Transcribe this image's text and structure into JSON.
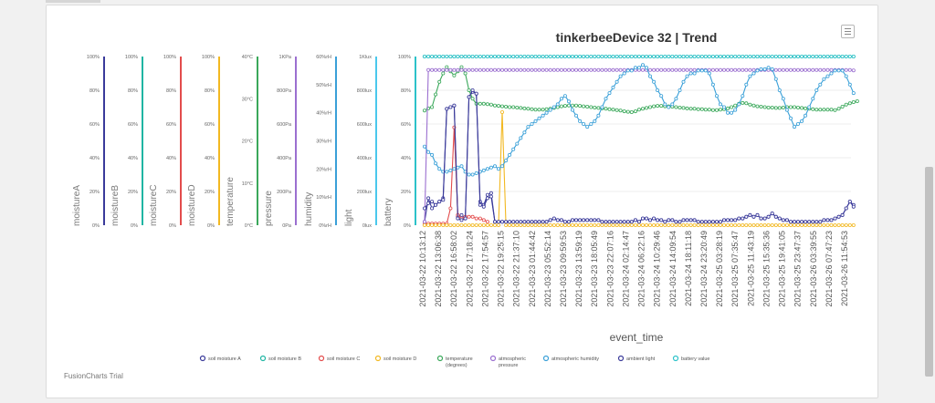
{
  "window": {
    "scrollbar": true
  },
  "chart_data": {
    "type": "line",
    "title": "tinkerbeeDevice 32 | Trend",
    "xlabel": "event_time",
    "watermark": "FusionCharts Trial",
    "x_ticks": [
      "2021-03-22 10:13:12",
      "2021-03-22 13:06:38",
      "2021-03-22 16:58:02",
      "2021-03-22 17:18:24",
      "2021-03-22 17:54:57",
      "2021-03-22 19:25:15",
      "2021-03-22 21:37:10",
      "2021-03-23 01:44:42",
      "2021-03-23 05:52:14",
      "2021-03-23 09:59:53",
      "2021-03-23 13:59:19",
      "2021-03-23 18:05:49",
      "2021-03-23 22:07:16",
      "2021-03-24 02:14:47",
      "2021-03-24 06:22:16",
      "2021-03-24 10:29:46",
      "2021-03-24 14:09:54",
      "2021-03-24 18:11:18",
      "2021-03-24 23:20:49",
      "2021-03-25 03:28:19",
      "2021-03-25 07:35:47",
      "2021-03-25 11:43:19",
      "2021-03-25 15:35:36",
      "2021-03-25 19:41:05",
      "2021-03-25 23:47:37",
      "2021-03-26 03:39:55",
      "2021-03-26 07:47:23",
      "2021-03-26 11:54:53"
    ],
    "axes": [
      {
        "name": "moistureA",
        "color": "#3a3a9a",
        "ticks": [
          "0%",
          "20%",
          "40%",
          "60%",
          "80%",
          "100%"
        ],
        "min": 0,
        "max": 100
      },
      {
        "name": "moistureB",
        "color": "#1fb5a3",
        "ticks": [
          "0%",
          "20%",
          "40%",
          "60%",
          "80%",
          "100%"
        ],
        "min": 0,
        "max": 100
      },
      {
        "name": "moistureC",
        "color": "#e34c4c",
        "ticks": [
          "0%",
          "20%",
          "40%",
          "60%",
          "80%",
          "100%"
        ],
        "min": 0,
        "max": 100
      },
      {
        "name": "moistureD",
        "color": "#f2b821",
        "ticks": [
          "0%",
          "20%",
          "40%",
          "60%",
          "80%",
          "100%"
        ],
        "min": 0,
        "max": 100
      },
      {
        "name": "temperature",
        "color": "#3aa85a",
        "ticks": [
          "0°C",
          "10°C",
          "20°C",
          "30°C",
          "40°C"
        ],
        "min": 0,
        "max": 40
      },
      {
        "name": "pressure",
        "color": "#9b6fd0",
        "ticks": [
          "0Pa",
          "200Pa",
          "400Pa",
          "600Pa",
          "800Pa",
          "1KPa"
        ],
        "min": 0,
        "max": 1000
      },
      {
        "name": "humidity",
        "color": "#3aa0d8",
        "ticks": [
          "0%rH",
          "10%rH",
          "20%rH",
          "30%rH",
          "40%rH",
          "50%rH",
          "60%rH"
        ],
        "min": 0,
        "max": 60
      },
      {
        "name": "light",
        "color": "#4ac8ec",
        "ticks": [
          "0lux",
          "200lux",
          "400lux",
          "600lux",
          "800lux",
          "1Klux"
        ],
        "min": 0,
        "max": 1000
      },
      {
        "name": "battery",
        "color": "#2cc2c9",
        "ticks": [
          "0%",
          "20%",
          "40%",
          "60%",
          "80%",
          "100%"
        ],
        "min": 0,
        "max": 100
      }
    ],
    "series": [
      {
        "name": "soil moisture A",
        "color": "#3a3a9a",
        "values": [
          2,
          16,
          10,
          12,
          14,
          16,
          69,
          70,
          71,
          5,
          6,
          4,
          76,
          79,
          78,
          14,
          12,
          18,
          19,
          2,
          2,
          2,
          2,
          2,
          2,
          2,
          2,
          2,
          2,
          2,
          2,
          2,
          2,
          2,
          3,
          4,
          3,
          3,
          2,
          2,
          3,
          3,
          3,
          3,
          3,
          3,
          3,
          3,
          2,
          2,
          2,
          2,
          2,
          2,
          2,
          2,
          2,
          3,
          2,
          4,
          4,
          3,
          4,
          3,
          3,
          2,
          3,
          3,
          2,
          2,
          3,
          3,
          3,
          3,
          2,
          2,
          2,
          2,
          2,
          2,
          2,
          3,
          3,
          3,
          3,
          4,
          4,
          5,
          6,
          5,
          6,
          4,
          4,
          5,
          7,
          5,
          4,
          3,
          3,
          2,
          2,
          2,
          2,
          2,
          2,
          2,
          2,
          2,
          3,
          3,
          3,
          4,
          5,
          6,
          10,
          14,
          12
        ]
      },
      {
        "name": "soil moisture B",
        "color": "#1fb5a3",
        "values": [
          100,
          100,
          100,
          100,
          100,
          100,
          100,
          100,
          100,
          100,
          100,
          100,
          100,
          100,
          100,
          100,
          100,
          100,
          100,
          100,
          100,
          100,
          100,
          100,
          100,
          100,
          100,
          100,
          100,
          100,
          100,
          100,
          100,
          100,
          100,
          100,
          100,
          100,
          100,
          100,
          100,
          100,
          100,
          100,
          100,
          100,
          100,
          100,
          100,
          100,
          100,
          100,
          100,
          100,
          100,
          100,
          100,
          100,
          100,
          100,
          100,
          100,
          100,
          100,
          100,
          100,
          100,
          100,
          100,
          100,
          100,
          100,
          100,
          100,
          100,
          100,
          100,
          100,
          100,
          100,
          100,
          100,
          100,
          100,
          100,
          100,
          100,
          100,
          100,
          100,
          100,
          100,
          100,
          100,
          100,
          100,
          100,
          100,
          100,
          100,
          100,
          100,
          100,
          100,
          100,
          100,
          100,
          100,
          100,
          100,
          100,
          100,
          100,
          100,
          100,
          100,
          100
        ]
      },
      {
        "name": "soil moisture C",
        "color": "#e34c4c",
        "values": [
          1,
          1,
          1,
          1,
          1,
          1,
          1,
          10,
          58,
          6,
          4,
          5,
          5,
          5,
          4,
          4,
          3,
          2
        ]
      },
      {
        "name": "soil moisture D",
        "color": "#f2b821",
        "values": [
          0,
          0,
          0,
          0,
          0,
          0,
          0,
          0,
          0,
          0,
          0,
          0,
          0,
          0,
          0,
          0,
          0,
          0,
          0,
          0,
          0,
          67,
          0,
          0,
          0,
          0,
          0,
          0,
          0,
          0,
          0,
          0,
          0,
          0,
          0,
          0,
          0,
          0,
          0,
          0,
          0,
          0,
          0,
          0,
          0,
          0,
          0,
          0,
          0,
          0,
          0,
          0,
          0,
          0,
          0,
          0,
          0,
          0,
          0,
          0,
          0,
          0,
          0,
          0,
          0,
          0,
          0,
          0,
          0,
          0,
          0,
          0,
          0,
          0,
          0,
          0,
          0,
          0,
          0,
          0,
          0,
          0,
          0,
          0,
          0,
          0,
          0,
          0,
          0,
          0,
          0,
          0,
          0,
          0,
          0,
          0,
          0,
          0,
          0,
          0,
          0,
          0,
          0,
          0,
          0,
          0,
          0,
          0,
          0,
          0,
          0,
          0,
          0,
          0,
          0,
          0,
          0
        ]
      },
      {
        "name": "temperature (degrees)",
        "color": "#3aa85a",
        "values": [
          27.2,
          27.7,
          28,
          31,
          34,
          36,
          37.5,
          36.5,
          35.5,
          36.5,
          37.5,
          36,
          32,
          30,
          28.8,
          28.8,
          28.8,
          28.7,
          28.6,
          28.4,
          28.3,
          28.2,
          28.1,
          28,
          28,
          27.9,
          27.8,
          27.7,
          27.6,
          27.5,
          27.4,
          27.4,
          27.4,
          27.5,
          27.6,
          27.8,
          28,
          28.2,
          28.3,
          28.4,
          28.4,
          28.4,
          28.3,
          28.2,
          28.1,
          28,
          27.9,
          27.8,
          27.7,
          27.6,
          27.5,
          27.4,
          27.3,
          27.2,
          27,
          26.9,
          26.8,
          27,
          27.4,
          27.6,
          27.8,
          28,
          28.2,
          28.3,
          28.3,
          28.2,
          28.2,
          28.1,
          28,
          27.9,
          27.8,
          27.7,
          27.6,
          27.6,
          27.5,
          27.5,
          27.4,
          27.4,
          27.3,
          27.3,
          27.4,
          27.5,
          27.7,
          28,
          28.4,
          28.8,
          29,
          28.9,
          28.6,
          28.4,
          28.2,
          28.1,
          28,
          27.9,
          27.9,
          27.8,
          27.8,
          27.9,
          28,
          28,
          28,
          27.9,
          27.8,
          27.7,
          27.6,
          27.5,
          27.4,
          27.4,
          27.4,
          27.4,
          27.4,
          27.3,
          27.6,
          28.1,
          28.6,
          28.9,
          29.2,
          29.4
        ]
      },
      {
        "name": "atmospheric pressure",
        "color": "#9b6fd0",
        "values": [
          20,
          920,
          920,
          920,
          920,
          920,
          920,
          920,
          920,
          920,
          920,
          920,
          920,
          920,
          920,
          920,
          920,
          920,
          920,
          920,
          920,
          920,
          920,
          920,
          920,
          920,
          920,
          920,
          920,
          920,
          920,
          920,
          920,
          920,
          920,
          920,
          920,
          920,
          920,
          920,
          920,
          920,
          920,
          920,
          920,
          920,
          920,
          920,
          920,
          920,
          920,
          920,
          920,
          920,
          920,
          920,
          920,
          920,
          920,
          920,
          920,
          920,
          920,
          920,
          920,
          920,
          920,
          920,
          920,
          920,
          920,
          920,
          920,
          920,
          920,
          920,
          920,
          920,
          920,
          920,
          920,
          920,
          920,
          920,
          920,
          920,
          920,
          920,
          920,
          920,
          920,
          920,
          920,
          920,
          920,
          920,
          920,
          920,
          920,
          920,
          920,
          920,
          920,
          920,
          920,
          920,
          920,
          920,
          920,
          920,
          920,
          920,
          920,
          920,
          920,
          920,
          918
        ]
      },
      {
        "name": "atmospheric humidity",
        "color": "#3aa0d8",
        "values": [
          28,
          26,
          25,
          22,
          20,
          19,
          19,
          19.5,
          20,
          20.5,
          21,
          19,
          18,
          18,
          18.5,
          19,
          19.5,
          20,
          20.5,
          21,
          20,
          21,
          23,
          25,
          27,
          29,
          31,
          33,
          35,
          36,
          37,
          38,
          39,
          40,
          41,
          42,
          43,
          45,
          46,
          44,
          41,
          39,
          37,
          36,
          35,
          36,
          37,
          39,
          42,
          45,
          47,
          49,
          51,
          53,
          54,
          55,
          55,
          56,
          56,
          57,
          56,
          53,
          51,
          48,
          46,
          43,
          42,
          43,
          45,
          48,
          51,
          53,
          54,
          54,
          55,
          55,
          55,
          54,
          50,
          46,
          43,
          42,
          40,
          40,
          41,
          43,
          46,
          50,
          53,
          54,
          55,
          55.5,
          55.5,
          56,
          55.5,
          52,
          48,
          45,
          41,
          38,
          35,
          36,
          37,
          39,
          42,
          45,
          48,
          50,
          52,
          53,
          54,
          55,
          55,
          55,
          53,
          50,
          47
        ]
      },
      {
        "name": "ambient light",
        "color": "#3a3a9a",
        "values": [
          100,
          130,
          140,
          120,
          140,
          150,
          690,
          700,
          710,
          40,
          30,
          40,
          760,
          800,
          780,
          120,
          110,
          160,
          170,
          20,
          20,
          20,
          20,
          20,
          20,
          20,
          20,
          20,
          20,
          20,
          20,
          20,
          20,
          20,
          30,
          40,
          30,
          30,
          20,
          20,
          30,
          30,
          30,
          30,
          30,
          30,
          30,
          30,
          20,
          20,
          20,
          20,
          20,
          20,
          20,
          20,
          20,
          30,
          20,
          40,
          40,
          30,
          40,
          30,
          30,
          20,
          30,
          30,
          20,
          20,
          30,
          30,
          30,
          30,
          20,
          20,
          20,
          20,
          20,
          20,
          20,
          30,
          30,
          30,
          30,
          40,
          40,
          50,
          60,
          50,
          60,
          40,
          40,
          50,
          70,
          50,
          40,
          30,
          30,
          20,
          20,
          20,
          20,
          20,
          20,
          20,
          20,
          20,
          30,
          30,
          30,
          40,
          50,
          60,
          100,
          140,
          110
        ]
      },
      {
        "name": "battery value",
        "color": "#2cc2c9",
        "values": [
          100,
          100,
          100,
          100,
          100,
          100,
          100,
          100,
          100,
          100,
          100,
          100,
          100,
          100,
          100,
          100,
          100,
          100,
          100,
          100,
          100,
          100,
          100,
          100,
          100,
          100,
          100,
          100,
          100,
          100,
          100,
          100,
          100,
          100,
          100,
          100,
          100,
          100,
          100,
          100,
          100,
          100,
          100,
          100,
          100,
          100,
          100,
          100,
          100,
          100,
          100,
          100,
          100,
          100,
          100,
          100,
          100,
          100,
          100,
          100,
          100,
          100,
          100,
          100,
          100,
          100,
          100,
          100,
          100,
          100,
          100,
          100,
          100,
          100,
          100,
          100,
          100,
          100,
          100,
          100,
          100,
          100,
          100,
          100,
          100,
          100,
          100,
          100,
          100,
          100,
          100,
          100,
          100,
          100,
          100,
          100,
          100,
          100,
          100,
          100,
          100,
          100,
          100,
          100,
          100,
          100,
          100,
          100,
          100,
          100,
          100,
          100,
          100,
          100,
          100,
          100,
          100
        ]
      }
    ],
    "legend": [
      {
        "label": [
          "soil moisture A"
        ],
        "color": "#3a3a9a"
      },
      {
        "label": [
          "soil moisture B"
        ],
        "color": "#1fb5a3"
      },
      {
        "label": [
          "soil moisture C"
        ],
        "color": "#e34c4c"
      },
      {
        "label": [
          "soil moisture D"
        ],
        "color": "#f2b821"
      },
      {
        "label": [
          "temperature",
          "(degrees)"
        ],
        "color": "#3aa85a"
      },
      {
        "label": [
          "atmospheric",
          "pressure"
        ],
        "color": "#9b6fd0"
      },
      {
        "label": [
          "atmospheric humidity"
        ],
        "color": "#3aa0d8"
      },
      {
        "label": [
          "ambient light"
        ],
        "color": "#3a3a9a"
      },
      {
        "label": [
          "battery value"
        ],
        "color": "#2cc2c9"
      }
    ],
    "legend_position": "bottom",
    "grid": true
  }
}
